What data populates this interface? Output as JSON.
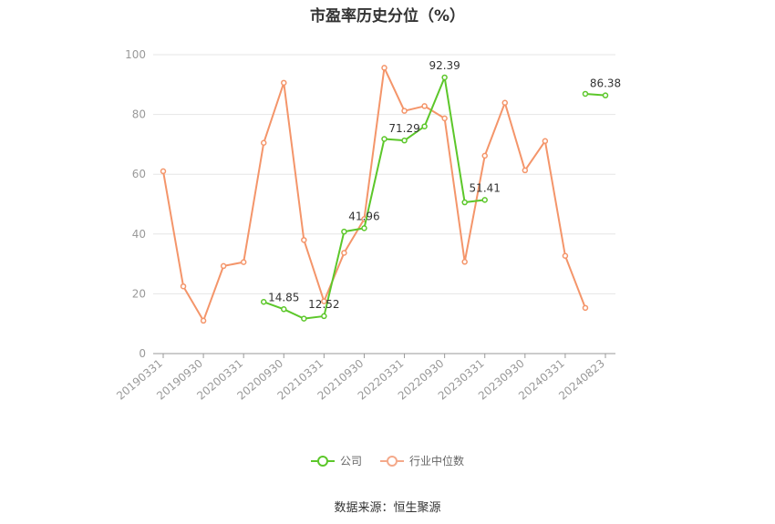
{
  "chart_data": {
    "type": "line",
    "title": "市盈率历史分位（%）",
    "xlabel": "",
    "ylabel": "",
    "ylim": [
      0,
      100
    ],
    "yticks": [
      0,
      20,
      40,
      60,
      80,
      100
    ],
    "grid": true,
    "legend_position": "bottom",
    "categories": [
      "20190331",
      "20190630",
      "20190930",
      "20191231",
      "20200331",
      "20200630",
      "20200930",
      "20201231",
      "20210331",
      "20210630",
      "20210930",
      "20211231",
      "20220331",
      "20220630",
      "20220930",
      "20221231",
      "20230331",
      "20230630",
      "20230930",
      "20231231",
      "20240331",
      "20240630",
      "20240823"
    ],
    "tick_labels": [
      "20190331",
      "20190930",
      "20200331",
      "20200930",
      "20210331",
      "20210930",
      "20220331",
      "20220930",
      "20230331",
      "20230930",
      "20240331",
      "20240823"
    ],
    "series": [
      {
        "name": "公司",
        "color": "#5cc72a",
        "values": [
          null,
          null,
          null,
          null,
          null,
          17.3,
          14.85,
          11.7,
          12.52,
          40.8,
          41.96,
          71.8,
          71.29,
          76,
          92.39,
          50.6,
          51.41,
          null,
          null,
          null,
          null,
          86.9,
          86.38
        ],
        "labels": [
          null,
          null,
          null,
          null,
          null,
          null,
          "14.85",
          null,
          "12.52",
          null,
          "41.96",
          null,
          "71.29",
          null,
          "92.39",
          null,
          "51.41",
          null,
          null,
          null,
          null,
          null,
          "86.38"
        ]
      },
      {
        "name": "行业中位数",
        "color": "#f4956a",
        "values": [
          61,
          22.5,
          11,
          29.3,
          30.6,
          70.5,
          90.6,
          38,
          17.5,
          33.7,
          45,
          95.6,
          81.2,
          82.8,
          78.7,
          30.7,
          66.2,
          83.9,
          61.3,
          71.1,
          32.7,
          15.3,
          null
        ]
      }
    ]
  },
  "source_note": "数据来源：恒生聚源"
}
